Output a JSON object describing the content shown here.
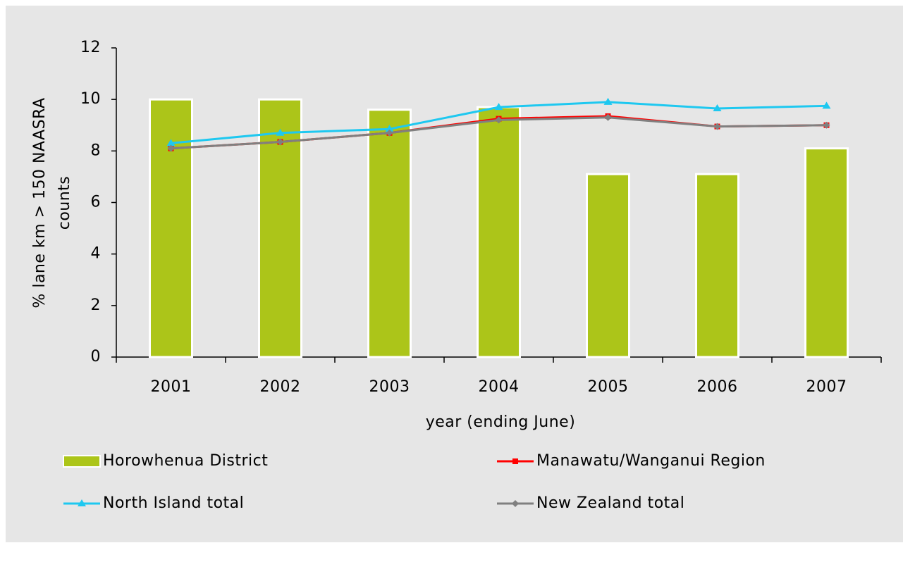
{
  "chart_data": {
    "type": "bar",
    "xlabel": "year (ending June)",
    "ylabel": [
      "% lane km > 150 NAASRA",
      "counts"
    ],
    "categories": [
      "2001",
      "2002",
      "2003",
      "2004",
      "2005",
      "2006",
      "2007"
    ],
    "ylim": [
      0,
      12
    ],
    "yticks": [
      0,
      2,
      4,
      6,
      8,
      10,
      12
    ],
    "series": [
      {
        "name": "Horowhenua District",
        "type": "bar",
        "color": "#acc519",
        "values": [
          10,
          10,
          9.6,
          9.7,
          7.1,
          7.1,
          8.1
        ]
      },
      {
        "name": "Manawatu/Wanganui Region",
        "type": "line",
        "marker": "square",
        "color": "#ff0000",
        "values": [
          8.1,
          8.35,
          8.7,
          9.25,
          9.35,
          8.95,
          9.0
        ]
      },
      {
        "name": "North Island total",
        "type": "line",
        "marker": "triangle",
        "color": "#1ec8f0",
        "values": [
          8.3,
          8.7,
          8.85,
          9.7,
          9.9,
          9.65,
          9.75
        ]
      },
      {
        "name": "New Zealand total",
        "type": "line",
        "marker": "diamond",
        "color": "#808080",
        "values": [
          8.1,
          8.35,
          8.7,
          9.2,
          9.3,
          8.95,
          9.0
        ]
      }
    ],
    "legend": "bottom"
  }
}
